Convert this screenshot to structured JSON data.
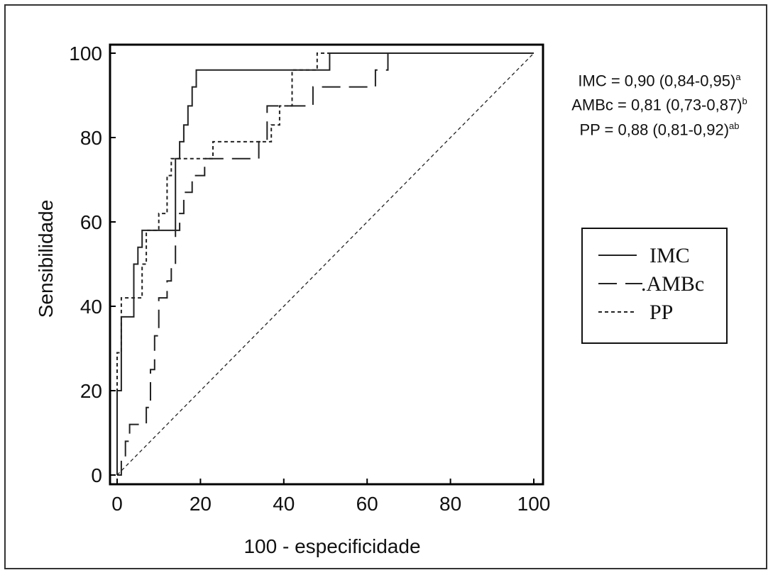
{
  "chart_data": {
    "type": "line",
    "title": "",
    "xlabel": "100 - especificidade",
    "ylabel": "Sensibilidade",
    "xlim": [
      0,
      100
    ],
    "ylim": [
      0,
      100
    ],
    "xticks": [
      "0",
      "20",
      "40",
      "60",
      "80",
      "100"
    ],
    "yticks": [
      "0",
      "20",
      "40",
      "60",
      "80",
      "100"
    ],
    "grid": false,
    "legend_position": "right",
    "series": [
      {
        "name": "IMC",
        "style": "solid",
        "x": [
          0,
          0,
          1,
          1,
          1,
          4,
          4,
          5,
          5,
          6,
          6,
          7,
          7,
          14,
          14,
          15,
          15,
          16,
          16,
          17,
          17,
          18,
          18,
          19,
          19,
          20,
          20,
          51,
          51,
          100
        ],
        "y": [
          0,
          20,
          20,
          25,
          37.5,
          37.5,
          50,
          50,
          54,
          54,
          58,
          58,
          58,
          58,
          75,
          75,
          79,
          79,
          83,
          83,
          87.5,
          87.5,
          92,
          92,
          96,
          96,
          96,
          96,
          100,
          100
        ]
      },
      {
        "name": "AMBc",
        "style": "dashed",
        "x": [
          0,
          1,
          1,
          2,
          2,
          3,
          3,
          7,
          7,
          8,
          8,
          9,
          9,
          10,
          10,
          12,
          12,
          13,
          13,
          14,
          14,
          15,
          15,
          16,
          16,
          17,
          17,
          18,
          18,
          19,
          19,
          21,
          21,
          23,
          23,
          34,
          34,
          36,
          36,
          37,
          37,
          47,
          47,
          62,
          62,
          65,
          65,
          100
        ],
        "y": [
          0,
          0,
          4,
          4,
          8,
          8,
          12,
          12,
          16,
          16,
          25,
          25,
          33,
          33,
          42,
          42,
          46,
          46,
          50,
          50,
          58,
          58,
          62,
          62,
          67,
          67,
          67,
          67,
          71,
          71,
          71,
          71,
          75,
          75,
          75,
          75,
          79,
          79,
          87.5,
          87.5,
          87.5,
          87.5,
          92,
          92,
          96,
          96,
          100,
          100
        ]
      },
      {
        "name": "PP",
        "style": "dotted",
        "x": [
          0,
          0,
          1,
          1,
          1,
          2,
          2,
          6,
          6,
          7,
          7,
          10,
          10,
          12,
          12,
          13,
          13,
          17,
          17,
          23,
          23,
          35,
          35,
          37,
          37,
          39,
          39,
          42,
          42,
          48,
          48,
          100
        ],
        "y": [
          0,
          29,
          29,
          33,
          42,
          42,
          42,
          42,
          50,
          50,
          58,
          58,
          62,
          62,
          71,
          71,
          75,
          75,
          75,
          75,
          79,
          79,
          79,
          79,
          83,
          83,
          87.5,
          87.5,
          96,
          96,
          100,
          100
        ]
      },
      {
        "name": "",
        "style": "reference-diagonal",
        "x": [
          0,
          100
        ],
        "y": [
          0,
          100
        ]
      }
    ],
    "annotations": {
      "imc": {
        "text": "IMC = 0,90 (0,84-0,95)",
        "sup": "a"
      },
      "ambc": {
        "text": "AMBc = 0,81 (0,73-0,87)",
        "sup": "b"
      },
      "pp": {
        "text": "PP = 0,88 (0,81-0,92)",
        "sup": "ab"
      }
    },
    "legend": {
      "imc": "IMC",
      "ambc": "AMBc",
      "ambc_dot": ".",
      "pp": "PP"
    }
  }
}
